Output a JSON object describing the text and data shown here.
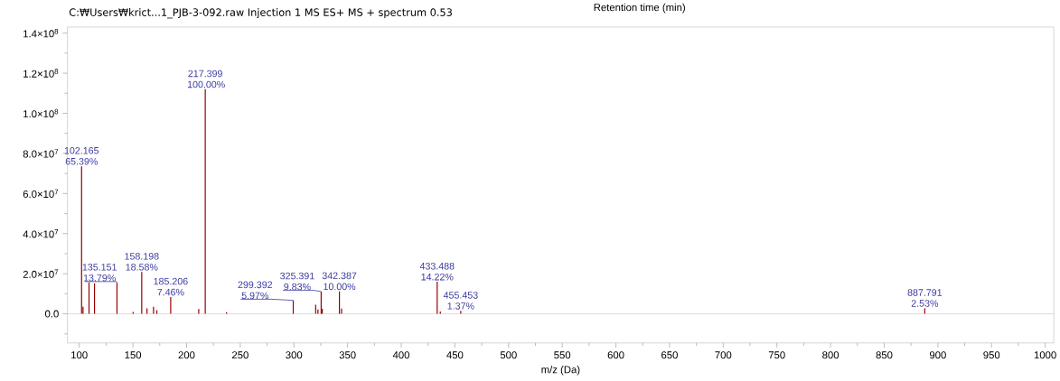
{
  "chart_data": {
    "type": "bar",
    "title": "C:₩Users₩krict...1_PJB-3-092.raw Injection 1 MS ES+ MS + spectrum 0.53",
    "xlabel": "m/z (Da)",
    "color": "#990000",
    "x": [
      102.165,
      103.5,
      109.1,
      114.2,
      135.151,
      150.2,
      158.198,
      163.1,
      169.2,
      172.3,
      185.206,
      211.3,
      217.399,
      237.2,
      299.392,
      320.3,
      322.4,
      325.391,
      326.4,
      342.387,
      344.4,
      433.488,
      436.4,
      455.453,
      887.791
    ],
    "values": [
      73600000,
      3500000,
      15700000,
      15200000,
      15500000,
      1000000,
      20900000,
      2800000,
      3500000,
      1800000,
      8400000,
      2400000,
      112000000,
      800000,
      6700000,
      4500000,
      2200000,
      11100000,
      2500000,
      11200000,
      2600000,
      16000000,
      1200000,
      1500000,
      2800000
    ],
    "annotations": [
      "Retention time (min)",
      {
        "text": "102.165 65.39%",
        "x": 102.165,
        "y": 73600000
      },
      {
        "text": "135.151 13.79%",
        "x": 135.151,
        "y": 15500000
      },
      {
        "text": "158.198 18.58%",
        "x": 158.198,
        "y": 20900000
      },
      {
        "text": "185.206 7.46%",
        "x": 185.206,
        "y": 8400000
      },
      {
        "text": "217.399 100.00%",
        "x": 217.399,
        "y": 112000000
      },
      {
        "text": "299.392 5.97%",
        "x": 299.392,
        "y": 6700000
      },
      {
        "text": "325.391 9.83%",
        "x": 325.391,
        "y": 11100000
      },
      {
        "text": "342.387 10.00%",
        "x": 342.387,
        "y": 11200000
      },
      {
        "text": "433.488 14.22%",
        "x": 433.488,
        "y": 16000000
      },
      {
        "text": "455.453 1.37%",
        "x": 455.453,
        "y": 1500000
      },
      {
        "text": "887.791 2.53%",
        "x": 887.791,
        "y": 2800000
      }
    ],
    "xlim": [
      89,
      1008
    ],
    "ylim": [
      -14500000,
      143000000
    ],
    "xticks": [
      100,
      150,
      200,
      250,
      300,
      350,
      400,
      450,
      500,
      550,
      600,
      650,
      700,
      750,
      800,
      850,
      900,
      950,
      1000,
      {
        "value": 125,
        "label": null
      },
      {
        "value": 175,
        "label": null
      },
      {
        "value": 225,
        "label": null
      },
      {
        "value": 275,
        "label": null
      },
      {
        "value": 325,
        "label": null
      },
      {
        "value": 375,
        "label": null
      },
      {
        "value": 425,
        "label": null
      },
      {
        "value": 475,
        "label": null
      },
      {
        "value": 525,
        "label": null
      },
      {
        "value": 575,
        "label": null
      },
      {
        "value": 625,
        "label": null
      },
      {
        "value": 675,
        "label": null
      },
      {
        "value": 725,
        "label": null
      },
      {
        "value": 775,
        "label": null
      },
      {
        "value": 825,
        "label": null
      },
      {
        "value": 875,
        "label": null
      },
      {
        "value": 925,
        "label": null
      },
      {
        "value": 975,
        "label": null
      }
    ],
    "yticks": [
      {
        "value": 0,
        "label": "0.0"
      },
      {
        "value": 20000000,
        "label": "2.0×10$^{7}$"
      },
      {
        "value": 40000000,
        "label": "4.0×10$^{7}$"
      },
      {
        "value": 60000000,
        "label": "6.0×10$^{7}$"
      },
      {
        "value": 80000000,
        "label": "8.0×10$^{7}$"
      },
      {
        "value": 100000000,
        "label": "1.0×10$^{8}$"
      },
      {
        "value": 120000000,
        "label": "1.2×10$^{8}$"
      },
      {
        "value": 140000000,
        "label": "1.4×10$^{8}$"
      },
      {
        "value": -10000000,
        "label": null
      },
      {
        "value": 10000000,
        "label": null
      },
      {
        "value": 30000000,
        "label": null
      },
      {
        "value": 50000000,
        "label": null
      },
      {
        "value": 70000000,
        "label": null
      },
      {
        "value": 90000000,
        "label": null
      },
      {
        "value": 110000000,
        "label": null
      },
      {
        "value": 130000000,
        "label": null
      }
    ]
  }
}
